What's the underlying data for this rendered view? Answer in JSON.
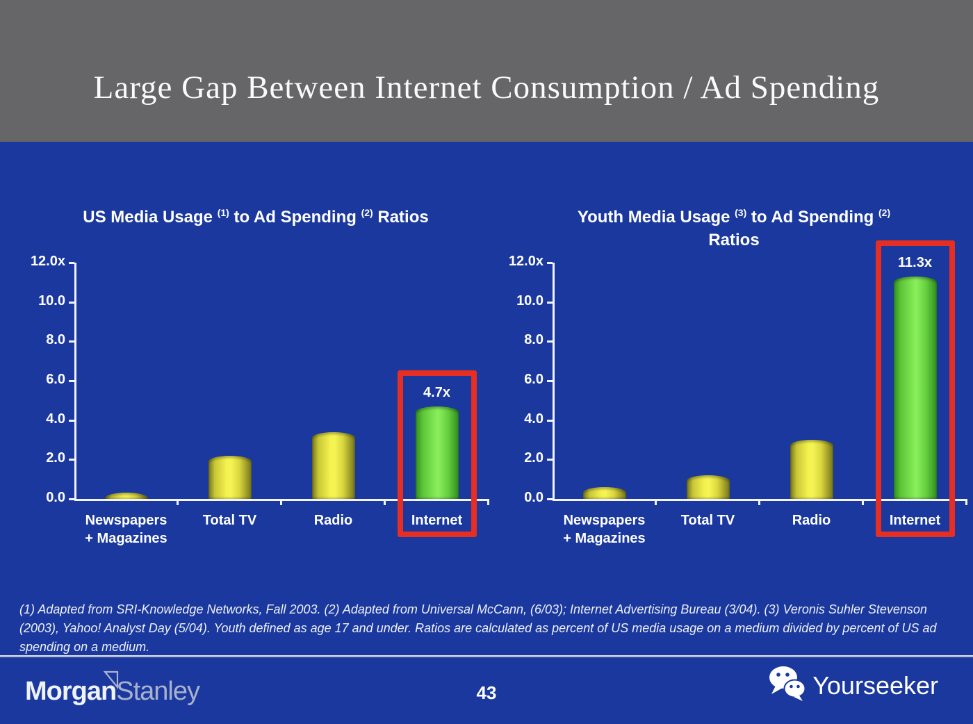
{
  "slide": {
    "title": "Large Gap Between Internet Consumption / Ad Spending",
    "page_number": "43"
  },
  "colors": {
    "slide_blue": "#1a389e",
    "header_gray": "#666668",
    "bar_yellow": "#f4f24e",
    "bar_yellow_edge": "#73741c",
    "bar_green": "#82e854",
    "bar_green_edge": "#2f8f1f",
    "highlight_red": "#e62e22",
    "text_white": "#ffffff"
  },
  "chart_data": [
    {
      "type": "bar",
      "title": "US Media Usage (1) to Ad Spending (2) Ratios",
      "title_parts": [
        {
          "text": "US Media Usage ",
          "sup": false
        },
        {
          "text": "(1)",
          "sup": true
        },
        {
          "text": " to Ad Spending ",
          "sup": false
        },
        {
          "text": "(2)",
          "sup": true
        },
        {
          "text": " Ratios",
          "sup": false
        }
      ],
      "title_line2": "",
      "categories": [
        "Newspapers + Magazines",
        "Total TV",
        "Radio",
        "Internet"
      ],
      "categories_display": [
        [
          "Newspapers",
          "+ Magazines"
        ],
        [
          "Total TV"
        ],
        [
          "Radio"
        ],
        [
          "Internet"
        ]
      ],
      "values": [
        0.3,
        2.2,
        3.4,
        4.7
      ],
      "bar_colors": [
        "yellow",
        "yellow",
        "yellow",
        "green"
      ],
      "highlight_index": 3,
      "data_label": "4.7x",
      "xlabel": "",
      "ylabel": "",
      "ylim": [
        0,
        12
      ],
      "yticks": [
        {
          "label": "12.0x",
          "value": 12
        },
        {
          "label": "10.0",
          "value": 10
        },
        {
          "label": "8.0",
          "value": 8
        },
        {
          "label": "6.0",
          "value": 6
        },
        {
          "label": "4.0",
          "value": 4
        },
        {
          "label": "2.0",
          "value": 2
        },
        {
          "label": "0.0",
          "value": 0
        }
      ],
      "grid": false,
      "legend": false
    },
    {
      "type": "bar",
      "title": "Youth Media Usage (3) to Ad Spending (2) Ratios",
      "title_parts": [
        {
          "text": "Youth Media Usage ",
          "sup": false
        },
        {
          "text": "(3)",
          "sup": true
        },
        {
          "text": " to Ad Spending ",
          "sup": false
        },
        {
          "text": "(2)",
          "sup": true
        }
      ],
      "title_line2": "Ratios",
      "categories": [
        "Newspapers + Magazines",
        "Total TV",
        "Radio",
        "Internet"
      ],
      "categories_display": [
        [
          "Newspapers",
          "+ Magazines"
        ],
        [
          "Total TV"
        ],
        [
          "Radio"
        ],
        [
          "Internet"
        ]
      ],
      "values": [
        0.6,
        1.2,
        3.0,
        11.3
      ],
      "bar_colors": [
        "yellow",
        "yellow",
        "yellow",
        "green"
      ],
      "highlight_index": 3,
      "data_label": "11.3x",
      "xlabel": "",
      "ylabel": "",
      "ylim": [
        0,
        12
      ],
      "yticks": [
        {
          "label": "12.0x",
          "value": 12
        },
        {
          "label": "10.0",
          "value": 10
        },
        {
          "label": "8.0",
          "value": 8
        },
        {
          "label": "6.0",
          "value": 6
        },
        {
          "label": "4.0",
          "value": 4
        },
        {
          "label": "2.0",
          "value": 2
        },
        {
          "label": "0.0",
          "value": 0
        }
      ],
      "grid": false,
      "legend": false
    }
  ],
  "footnote": {
    "text": "(1) Adapted from SRI-Knowledge Networks, Fall 2003.  (2) Adapted from Universal McCann, (6/03); Internet Advertising Bureau (3/04). (3) Veronis Suhler Stevenson (2003), Yahoo! Analyst Day (5/04).  Youth defined as age 17 and under.  Ratios are calculated as percent of US media usage on a medium divided by percent of US ad spending on a medium."
  },
  "footer": {
    "brand_part1": "Morgan",
    "brand_part2": "Stanley",
    "watermark": "Yourseeker"
  }
}
